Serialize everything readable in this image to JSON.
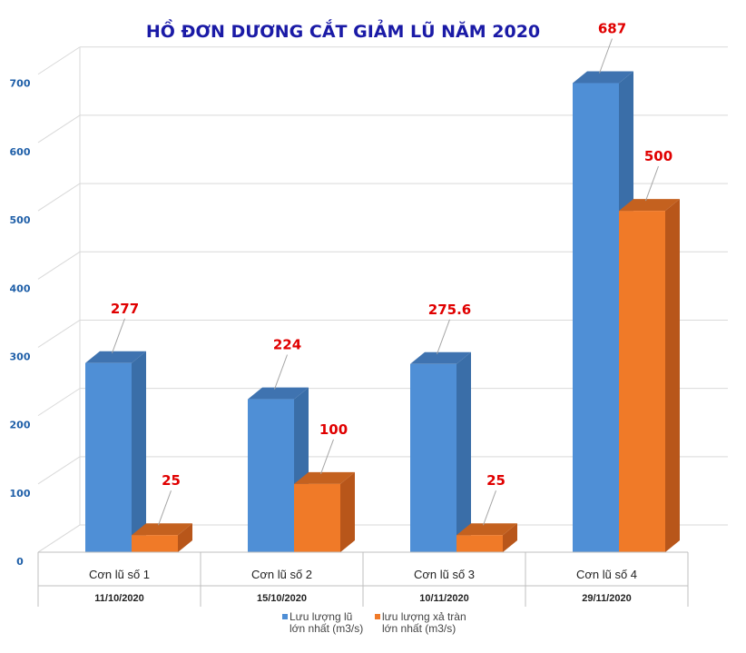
{
  "chart_data": {
    "type": "bar",
    "title": "HỒ ĐƠN DƯƠNG CẮT GIẢM LŨ NĂM 2020",
    "categories": [
      "Cơn lũ số 1",
      "Cơn lũ số 2",
      "Cơn lũ số 3",
      "Cơn lũ số 4"
    ],
    "category_dates": [
      "11/10/2020",
      "15/10/2020",
      "10/11/2020",
      "29/11/2020"
    ],
    "series": [
      {
        "name": "Lưu lượng lũ lớn nhất (m3/s)",
        "legend_lines": [
          "Lưu lượng lũ",
          "lớn nhất (m3/s)"
        ],
        "values": [
          277,
          224,
          275.6,
          687
        ],
        "data_labels": [
          "277",
          "224",
          "275.6",
          "687"
        ],
        "color": "#4f8fd6",
        "side_color": "#3a6ea8",
        "top_color": "#3f73b0"
      },
      {
        "name": "lưu lượng xả tràn lớn nhất (m3/s)",
        "legend_lines": [
          "lưu lượng xả tràn",
          "lớn nhất (m3/s)"
        ],
        "values": [
          25,
          100,
          25,
          500
        ],
        "data_labels": [
          "25",
          "100",
          "25",
          "500"
        ],
        "color": "#f07a28",
        "side_color": "#b8561a",
        "top_color": "#c4611f"
      }
    ],
    "y_ticks": [
      "0",
      "100",
      "200",
      "300",
      "400",
      "500",
      "600",
      "700"
    ],
    "ylim": [
      0,
      700
    ],
    "grid": true,
    "legend_position": "bottom",
    "label_color": "#e00000",
    "title_color": "#1a1aa6"
  }
}
